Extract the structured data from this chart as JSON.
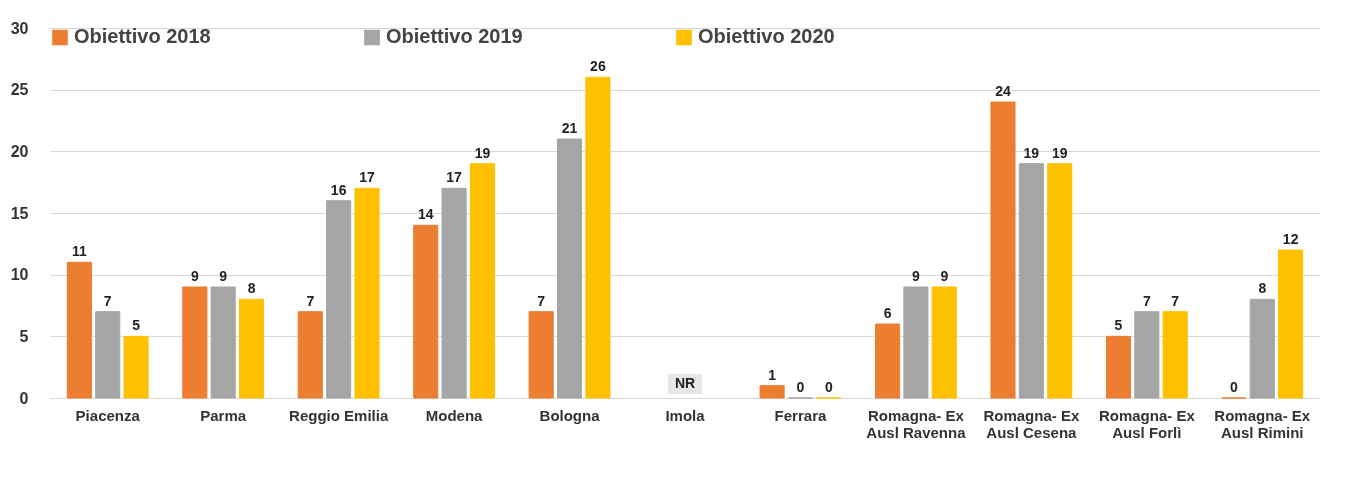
{
  "chart_data": {
    "type": "bar",
    "categories": [
      "Piacenza",
      "Parma",
      "Reggio Emilia",
      "Modena",
      "Bologna",
      "Imola",
      "Ferrara",
      "Romagna- Ex Ausl Ravenna",
      "Romagna- Ex Ausl Cesena",
      "Romagna- Ex Ausl Forlì",
      "Romagna- Ex Ausl Rimini"
    ],
    "series": [
      {
        "name": "Obiettivo 2018",
        "color": "#ed7d31",
        "values": [
          11,
          9,
          7,
          14,
          7,
          null,
          1,
          6,
          24,
          5,
          0
        ]
      },
      {
        "name": "Obiettivo 2019",
        "color": "#a5a5a5",
        "values": [
          7,
          9,
          16,
          17,
          21,
          null,
          0,
          9,
          19,
          7,
          8
        ]
      },
      {
        "name": "Obiettivo 2020",
        "color": "#ffc000",
        "values": [
          5,
          8,
          17,
          19,
          26,
          null,
          0,
          9,
          19,
          7,
          12
        ]
      }
    ],
    "ylim": [
      0,
      30
    ],
    "yticks": [
      0,
      5,
      10,
      15,
      20,
      25,
      30
    ],
    "grid": "y",
    "legend": "top",
    "data_labels": true,
    "annotations": [
      "NR"
    ]
  }
}
